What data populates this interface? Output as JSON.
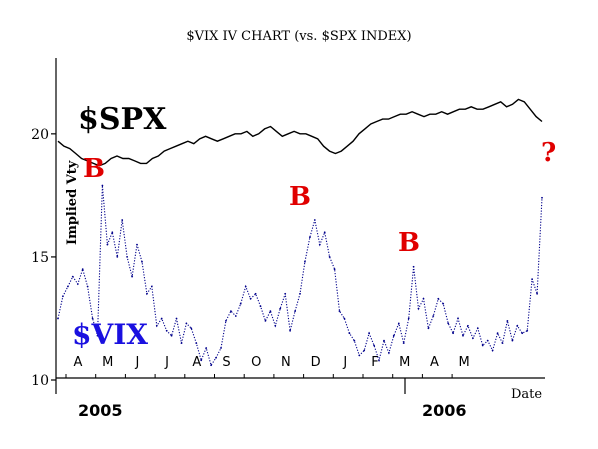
{
  "chart_data": {
    "type": "line",
    "title": "$VIX IV CHART (vs. $SPX INDEX)",
    "ylabel": "Implied Vty",
    "xlabel": "Date",
    "ylim": [
      10,
      23
    ],
    "y_ticks": [
      "10",
      "15",
      "20"
    ],
    "x_month_labels": [
      "A",
      "M",
      "J",
      "J",
      "A",
      "S",
      "O",
      "N",
      "D",
      "J",
      "F",
      "M",
      "A",
      "M"
    ],
    "year_labels": [
      "2005",
      "2006"
    ],
    "grid": false,
    "series": [
      {
        "name": "$SPX",
        "color": "#000000",
        "style": "solid",
        "values": [
          19.7,
          19.5,
          19.4,
          19.2,
          19.0,
          18.9,
          18.8,
          18.7,
          18.8,
          19.0,
          19.1,
          19.0,
          19.0,
          18.9,
          18.8,
          18.8,
          19.0,
          19.1,
          19.3,
          19.4,
          19.5,
          19.6,
          19.7,
          19.6,
          19.8,
          19.9,
          19.8,
          19.7,
          19.8,
          19.9,
          20.0,
          20.0,
          20.1,
          19.9,
          20.0,
          20.2,
          20.3,
          20.1,
          19.9,
          20.0,
          20.1,
          20.0,
          20.0,
          19.9,
          19.8,
          19.5,
          19.3,
          19.2,
          19.3,
          19.5,
          19.7,
          20.0,
          20.2,
          20.4,
          20.5,
          20.6,
          20.6,
          20.7,
          20.8,
          20.8,
          20.9,
          20.8,
          20.7,
          20.8,
          20.8,
          20.9,
          20.8,
          20.9,
          21.0,
          21.0,
          21.1,
          21.0,
          21.0,
          21.1,
          21.2,
          21.3,
          21.1,
          21.2,
          21.4,
          21.3,
          21.0,
          20.7,
          20.5
        ]
      },
      {
        "name": "$VIX",
        "color": "#00008b",
        "style": "dotted",
        "values": [
          12.5,
          13.4,
          13.8,
          14.2,
          13.9,
          14.5,
          13.8,
          12.5,
          11.8,
          17.9,
          15.5,
          16.0,
          15.0,
          16.5,
          15.0,
          14.2,
          15.5,
          14.8,
          13.5,
          13.8,
          12.2,
          12.5,
          12.0,
          11.8,
          12.5,
          11.5,
          12.3,
          12.1,
          11.5,
          10.8,
          11.3,
          10.6,
          10.9,
          11.3,
          12.4,
          12.8,
          12.6,
          13.1,
          13.8,
          13.3,
          13.5,
          13.0,
          12.4,
          12.8,
          12.2,
          12.9,
          13.5,
          12.0,
          12.8,
          13.5,
          14.8,
          15.8,
          16.5,
          15.5,
          16.0,
          15.0,
          14.5,
          12.8,
          12.5,
          11.9,
          11.6,
          11.0,
          11.2,
          11.9,
          11.4,
          10.8,
          11.6,
          11.1,
          11.8,
          12.3,
          11.5,
          12.5,
          14.6,
          12.9,
          13.3,
          12.1,
          12.6,
          13.3,
          13.1,
          12.3,
          11.9,
          12.5,
          11.8,
          12.2,
          11.7,
          12.1,
          11.4,
          11.6,
          11.2,
          11.9,
          11.5,
          12.4,
          11.6,
          12.2,
          11.9,
          12.0,
          14.1,
          13.5,
          17.4
        ]
      }
    ],
    "annotations": [
      {
        "text": "$SPX",
        "color": "#000000"
      },
      {
        "text": "$VIX",
        "color": "#1a10e0"
      },
      {
        "text": "B",
        "color": "#e00000"
      },
      {
        "text": "B",
        "color": "#e00000"
      },
      {
        "text": "B",
        "color": "#e00000"
      },
      {
        "text": "?",
        "color": "#e00000"
      }
    ]
  }
}
